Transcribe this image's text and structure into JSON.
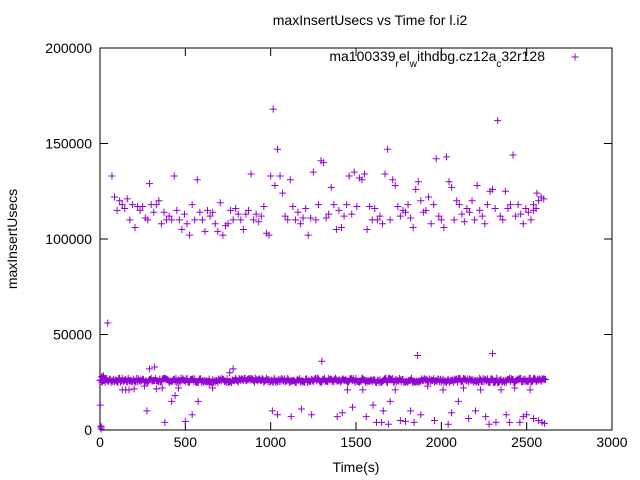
{
  "chart_data": {
    "type": "scatter",
    "title": "maxInsertUsecs vs Time for l.i2",
    "xlabel": "Time(s)",
    "ylabel": "maxInsertUsecs",
    "xlim": [
      0,
      3000
    ],
    "ylim": [
      0,
      200000
    ],
    "xticks": [
      "0",
      "500",
      "1000",
      "1500",
      "2000",
      "2500",
      "3000"
    ],
    "yticks": [
      "0",
      "50000",
      "100000",
      "150000",
      "200000"
    ],
    "grid": false,
    "legend_position": "top-right",
    "marker": "+",
    "series": [
      {
        "name_parts": [
          "ma100339",
          "r",
          "el",
          "w",
          "ithdbg.cz12a",
          "c",
          "32r128"
        ],
        "color": "#9400d3",
        "baseline": {
          "x_start": 0,
          "x_end": 2610,
          "step": 5,
          "y_center": 26000,
          "y_spread": 1200
        },
        "points": [
          [
            2,
            13000
          ],
          [
            4,
            2000
          ],
          [
            6,
            500
          ],
          [
            8,
            1500
          ],
          [
            10,
            28000
          ],
          [
            15,
            27500
          ],
          [
            20,
            28500
          ],
          [
            30,
            27000
          ],
          [
            45,
            56000
          ],
          [
            70,
            133000
          ],
          [
            85,
            122000
          ],
          [
            100,
            115000
          ],
          [
            115,
            120000
          ],
          [
            130,
            118000
          ],
          [
            145,
            116000
          ],
          [
            160,
            121000
          ],
          [
            175,
            110000
          ],
          [
            190,
            118000
          ],
          [
            205,
            106000
          ],
          [
            220,
            117000
          ],
          [
            235,
            115000
          ],
          [
            250,
            117000
          ],
          [
            265,
            111000
          ],
          [
            280,
            110000
          ],
          [
            290,
            129000
          ],
          [
            300,
            118000
          ],
          [
            315,
            114000
          ],
          [
            330,
            118000
          ],
          [
            345,
            120000
          ],
          [
            360,
            108000
          ],
          [
            375,
            114000
          ],
          [
            390,
            110000
          ],
          [
            405,
            112000
          ],
          [
            420,
            110000
          ],
          [
            435,
            133000
          ],
          [
            450,
            115000
          ],
          [
            465,
            110000
          ],
          [
            480,
            105000
          ],
          [
            495,
            113000
          ],
          [
            510,
            108000
          ],
          [
            525,
            102000
          ],
          [
            540,
            118000
          ],
          [
            555,
            110000
          ],
          [
            570,
            131000
          ],
          [
            585,
            114000
          ],
          [
            600,
            110000
          ],
          [
            615,
            104000
          ],
          [
            630,
            115000
          ],
          [
            645,
            112000
          ],
          [
            660,
            114000
          ],
          [
            675,
            108000
          ],
          [
            690,
            104000
          ],
          [
            705,
            119000
          ],
          [
            720,
            102000
          ],
          [
            735,
            107000
          ],
          [
            750,
            108000
          ],
          [
            765,
            115000
          ],
          [
            780,
            110000
          ],
          [
            795,
            116000
          ],
          [
            810,
            113000
          ],
          [
            825,
            110000
          ],
          [
            840,
            105000
          ],
          [
            855,
            113000
          ],
          [
            870,
            115000
          ],
          [
            885,
            134000
          ],
          [
            900,
            110000
          ],
          [
            915,
            113000
          ],
          [
            930,
            109000
          ],
          [
            945,
            112000
          ],
          [
            960,
            117000
          ],
          [
            975,
            103000
          ],
          [
            990,
            102000
          ],
          [
            1000,
            133000
          ],
          [
            1015,
            168000
          ],
          [
            1025,
            128000
          ],
          [
            1040,
            147000
          ],
          [
            1055,
            133000
          ],
          [
            1070,
            124000
          ],
          [
            1085,
            112000
          ],
          [
            1100,
            110000
          ],
          [
            1115,
            131000
          ],
          [
            1130,
            117000
          ],
          [
            1145,
            110000
          ],
          [
            1160,
            114000
          ],
          [
            1175,
            108000
          ],
          [
            1190,
            111000
          ],
          [
            1205,
            116000
          ],
          [
            1220,
            102000
          ],
          [
            1235,
            111000
          ],
          [
            1250,
            135000
          ],
          [
            1265,
            110000
          ],
          [
            1280,
            118000
          ],
          [
            1295,
            141000
          ],
          [
            1310,
            140000
          ],
          [
            1325,
            111000
          ],
          [
            1340,
            113000
          ],
          [
            1355,
            127000
          ],
          [
            1370,
            118000
          ],
          [
            1385,
            105000
          ],
          [
            1400,
            115000
          ],
          [
            1415,
            106000
          ],
          [
            1430,
            112000
          ],
          [
            1445,
            118000
          ],
          [
            1460,
            133000
          ],
          [
            1475,
            113000
          ],
          [
            1490,
            135000
          ],
          [
            1505,
            117000
          ],
          [
            1520,
            132000
          ],
          [
            1535,
            131000
          ],
          [
            1550,
            134000
          ],
          [
            1565,
            105000
          ],
          [
            1580,
            117000
          ],
          [
            1595,
            110000
          ],
          [
            1610,
            116000
          ],
          [
            1625,
            110000
          ],
          [
            1640,
            112000
          ],
          [
            1655,
            108000
          ],
          [
            1670,
            134000
          ],
          [
            1685,
            147000
          ],
          [
            1700,
            110000
          ],
          [
            1715,
            131000
          ],
          [
            1730,
            128000
          ],
          [
            1745,
            117000
          ],
          [
            1760,
            112000
          ],
          [
            1775,
            115000
          ],
          [
            1790,
            114000
          ],
          [
            1805,
            118000
          ],
          [
            1820,
            111000
          ],
          [
            1835,
            106000
          ],
          [
            1850,
            126000
          ],
          [
            1865,
            130000
          ],
          [
            1880,
            120000
          ],
          [
            1895,
            114000
          ],
          [
            1910,
            115000
          ],
          [
            1925,
            122000
          ],
          [
            1940,
            108000
          ],
          [
            1955,
            118000
          ],
          [
            1970,
            142000
          ],
          [
            1985,
            112000
          ],
          [
            2000,
            110000
          ],
          [
            2015,
            106000
          ],
          [
            2030,
            143000
          ],
          [
            2045,
            130000
          ],
          [
            2060,
            127000
          ],
          [
            2075,
            110000
          ],
          [
            2090,
            120000
          ],
          [
            2105,
            118000
          ],
          [
            2120,
            113000
          ],
          [
            2135,
            109000
          ],
          [
            2150,
            116000
          ],
          [
            2165,
            114000
          ],
          [
            2180,
            120000
          ],
          [
            2195,
            110000
          ],
          [
            2210,
            128000
          ],
          [
            2225,
            115000
          ],
          [
            2240,
            112000
          ],
          [
            2255,
            108000
          ],
          [
            2270,
            118000
          ],
          [
            2285,
            125000
          ],
          [
            2300,
            126000
          ],
          [
            2315,
            116000
          ],
          [
            2330,
            162000
          ],
          [
            2345,
            112000
          ],
          [
            2360,
            110000
          ],
          [
            2375,
            125000
          ],
          [
            2390,
            116000
          ],
          [
            2405,
            118000
          ],
          [
            2420,
            144000
          ],
          [
            2435,
            112000
          ],
          [
            2450,
            118000
          ],
          [
            2465,
            113000
          ],
          [
            2480,
            108000
          ],
          [
            2495,
            116000
          ],
          [
            2510,
            114000
          ],
          [
            2525,
            110000
          ],
          [
            2540,
            118000
          ],
          [
            2555,
            116000
          ],
          [
            2570,
            120000
          ],
          [
            2585,
            122000
          ],
          [
            2600,
            121000
          ],
          [
            2560,
            124000
          ],
          [
            2540,
            115000
          ],
          [
            130,
            21000
          ],
          [
            150,
            21000
          ],
          [
            170,
            21000
          ],
          [
            200,
            21500
          ],
          [
            260,
            23000
          ],
          [
            275,
            10000
          ],
          [
            290,
            32000
          ],
          [
            320,
            33000
          ],
          [
            330,
            21500
          ],
          [
            365,
            22000
          ],
          [
            380,
            4000
          ],
          [
            420,
            15000
          ],
          [
            440,
            18000
          ],
          [
            460,
            22000
          ],
          [
            500,
            4500
          ],
          [
            540,
            8000
          ],
          [
            575,
            15000
          ],
          [
            640,
            24000
          ],
          [
            660,
            22000
          ],
          [
            760,
            30000
          ],
          [
            780,
            32000
          ],
          [
            1010,
            10000
          ],
          [
            1040,
            8000
          ],
          [
            1120,
            7000
          ],
          [
            1180,
            11000
          ],
          [
            1240,
            8000
          ],
          [
            1300,
            36000
          ],
          [
            1390,
            7000
          ],
          [
            1420,
            9000
          ],
          [
            1450,
            21000
          ],
          [
            1480,
            12000
          ],
          [
            1540,
            21000
          ],
          [
            1560,
            7000
          ],
          [
            1600,
            13000
          ],
          [
            1620,
            4000
          ],
          [
            1650,
            4000
          ],
          [
            1660,
            10000
          ],
          [
            1690,
            3000
          ],
          [
            1700,
            15000
          ],
          [
            1730,
            21000
          ],
          [
            1760,
            5000
          ],
          [
            1790,
            4500
          ],
          [
            1820,
            10000
          ],
          [
            1840,
            4000
          ],
          [
            1860,
            39000
          ],
          [
            1880,
            8000
          ],
          [
            1920,
            23000
          ],
          [
            1960,
            5000
          ],
          [
            2010,
            21000
          ],
          [
            2040,
            3000
          ],
          [
            2060,
            9000
          ],
          [
            2100,
            15000
          ],
          [
            2130,
            22000
          ],
          [
            2160,
            6000
          ],
          [
            2200,
            10000
          ],
          [
            2230,
            21000
          ],
          [
            2260,
            7000
          ],
          [
            2280,
            3000
          ],
          [
            2300,
            40000
          ],
          [
            2320,
            4000
          ],
          [
            2350,
            21000
          ],
          [
            2380,
            8000
          ],
          [
            2400,
            4000
          ],
          [
            2430,
            22000
          ],
          [
            2460,
            4000
          ],
          [
            2480,
            7000
          ],
          [
            2500,
            8000
          ],
          [
            2520,
            21000
          ],
          [
            2540,
            6000
          ],
          [
            2570,
            5000
          ],
          [
            2590,
            4000
          ],
          [
            2605,
            3500
          ]
        ]
      }
    ]
  }
}
